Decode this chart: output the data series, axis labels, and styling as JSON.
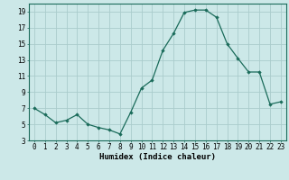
{
  "x": [
    0,
    1,
    2,
    3,
    4,
    5,
    6,
    7,
    8,
    9,
    10,
    11,
    12,
    13,
    14,
    15,
    16,
    17,
    18,
    19,
    20,
    21,
    22,
    23
  ],
  "y": [
    7.0,
    6.2,
    5.2,
    5.5,
    6.2,
    5.0,
    4.6,
    4.3,
    3.8,
    6.5,
    9.5,
    10.5,
    14.2,
    16.3,
    18.9,
    19.2,
    19.2,
    18.3,
    15.0,
    13.2,
    11.5,
    11.5,
    7.5,
    7.8
  ],
  "xlabel": "Humidex (Indice chaleur)",
  "xlim": [
    -0.5,
    23.5
  ],
  "ylim": [
    3,
    20
  ],
  "yticks": [
    3,
    5,
    7,
    9,
    11,
    13,
    15,
    17,
    19
  ],
  "xticks": [
    0,
    1,
    2,
    3,
    4,
    5,
    6,
    7,
    8,
    9,
    10,
    11,
    12,
    13,
    14,
    15,
    16,
    17,
    18,
    19,
    20,
    21,
    22,
    23
  ],
  "line_color": "#1a6b5a",
  "marker_color": "#1a6b5a",
  "bg_color": "#cce8e8",
  "grid_color": "#aacccc",
  "tick_fontsize": 5.5,
  "xlabel_fontsize": 6.5
}
